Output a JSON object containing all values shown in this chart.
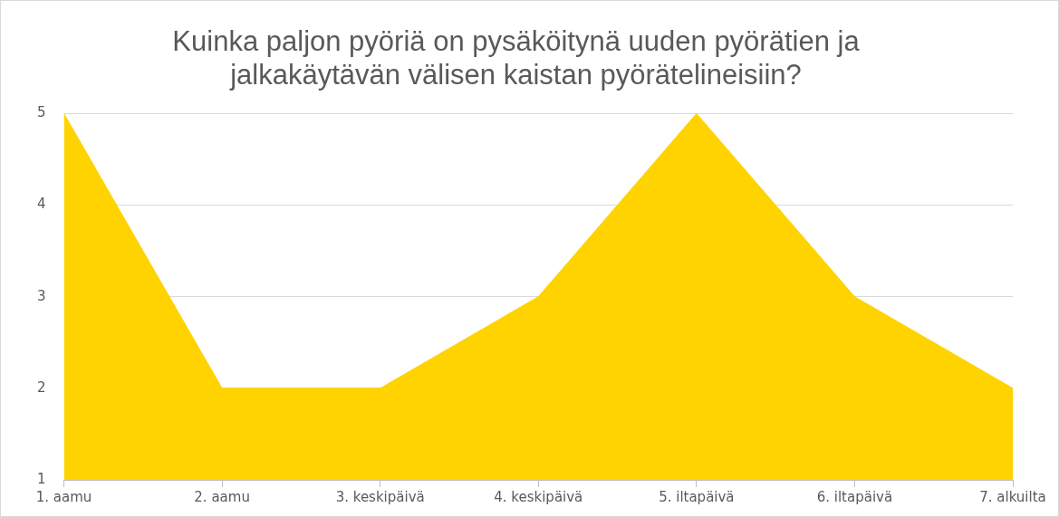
{
  "chart_data": {
    "type": "area",
    "title": "Kuinka paljon pyöriä on pysäköitynä uuden pyörätien ja\njalkakäytävän välisen kaistan pyörätelineisiin?",
    "categories": [
      "1. aamu",
      "2. aamu",
      "3. keskipäivä",
      "4. keskipäivä",
      "5. iltapäivä",
      "6. iltapäivä",
      "7. alkuilta"
    ],
    "values": [
      5,
      2,
      2,
      3,
      5,
      3,
      2
    ],
    "color": "#ffd300",
    "ylim": [
      1,
      5
    ],
    "yticks": [
      1,
      2,
      3,
      4,
      5
    ],
    "grid": "y",
    "legend": false
  }
}
